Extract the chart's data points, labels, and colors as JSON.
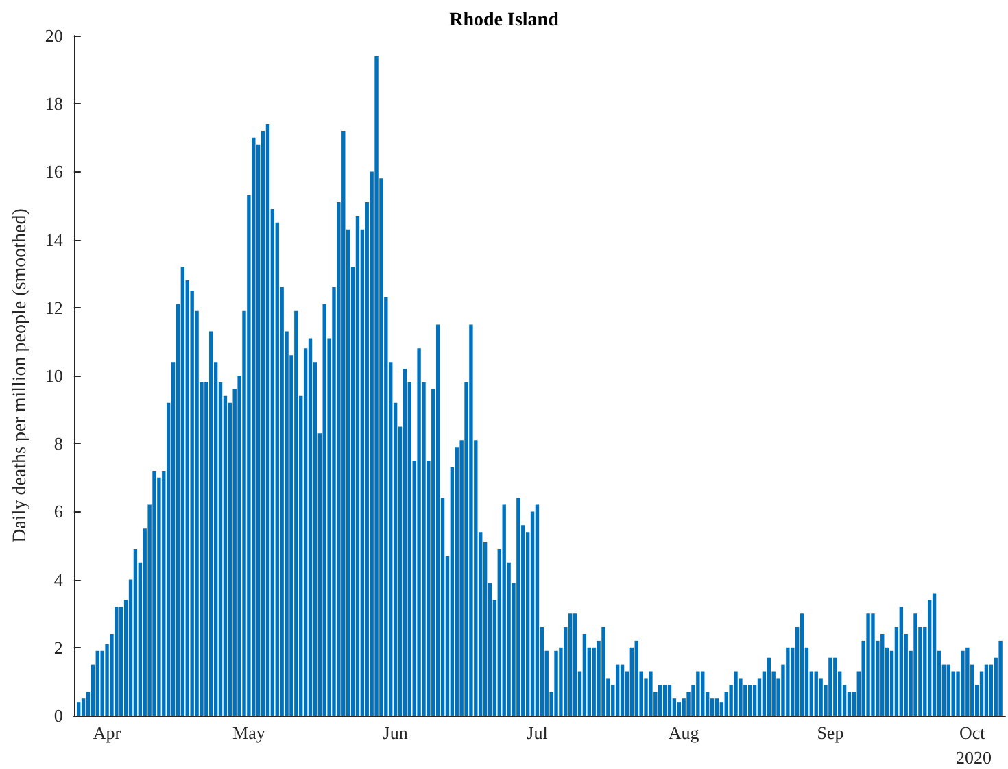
{
  "chart_data": {
    "type": "bar",
    "title": "Rhode Island",
    "ylabel": "Daily deaths per million people (smoothed)",
    "color": "#0072bd",
    "x": [
      "2020-03-26",
      "2020-03-27",
      "2020-03-28",
      "2020-03-29",
      "2020-03-30",
      "2020-03-31",
      "2020-04-01",
      "2020-04-02",
      "2020-04-03",
      "2020-04-04",
      "2020-04-05",
      "2020-04-06",
      "2020-04-07",
      "2020-04-08",
      "2020-04-09",
      "2020-04-10",
      "2020-04-11",
      "2020-04-12",
      "2020-04-13",
      "2020-04-14",
      "2020-04-15",
      "2020-04-16",
      "2020-04-17",
      "2020-04-18",
      "2020-04-19",
      "2020-04-20",
      "2020-04-21",
      "2020-04-22",
      "2020-04-23",
      "2020-04-24",
      "2020-04-25",
      "2020-04-26",
      "2020-04-27",
      "2020-04-28",
      "2020-04-29",
      "2020-04-30",
      "2020-05-01",
      "2020-05-02",
      "2020-05-03",
      "2020-05-04",
      "2020-05-05",
      "2020-05-06",
      "2020-05-07",
      "2020-05-08",
      "2020-05-09",
      "2020-05-10",
      "2020-05-11",
      "2020-05-12",
      "2020-05-13",
      "2020-05-14",
      "2020-05-15",
      "2020-05-16",
      "2020-05-17",
      "2020-05-18",
      "2020-05-19",
      "2020-05-20",
      "2020-05-21",
      "2020-05-22",
      "2020-05-23",
      "2020-05-24",
      "2020-05-25",
      "2020-05-26",
      "2020-05-27",
      "2020-05-28",
      "2020-05-29",
      "2020-05-30",
      "2020-05-31",
      "2020-06-01",
      "2020-06-02",
      "2020-06-03",
      "2020-06-04",
      "2020-06-05",
      "2020-06-06",
      "2020-06-07",
      "2020-06-08",
      "2020-06-09",
      "2020-06-10",
      "2020-06-11",
      "2020-06-12",
      "2020-06-13",
      "2020-06-14",
      "2020-06-15",
      "2020-06-16",
      "2020-06-17",
      "2020-06-18",
      "2020-06-19",
      "2020-06-20",
      "2020-06-21",
      "2020-06-22",
      "2020-06-23",
      "2020-06-24",
      "2020-06-25",
      "2020-06-26",
      "2020-06-27",
      "2020-06-28",
      "2020-06-29",
      "2020-06-30",
      "2020-07-01",
      "2020-07-02",
      "2020-07-03",
      "2020-07-04",
      "2020-07-05",
      "2020-07-06",
      "2020-07-07",
      "2020-07-08",
      "2020-07-09",
      "2020-07-10",
      "2020-07-11",
      "2020-07-12",
      "2020-07-13",
      "2020-07-14",
      "2020-07-15",
      "2020-07-16",
      "2020-07-17",
      "2020-07-18",
      "2020-07-19",
      "2020-07-20",
      "2020-07-21",
      "2020-07-22",
      "2020-07-23",
      "2020-07-24",
      "2020-07-25",
      "2020-07-26",
      "2020-07-27",
      "2020-07-28",
      "2020-07-29",
      "2020-07-30",
      "2020-07-31",
      "2020-08-01",
      "2020-08-02",
      "2020-08-03",
      "2020-08-04",
      "2020-08-05",
      "2020-08-06",
      "2020-08-07",
      "2020-08-08",
      "2020-08-09",
      "2020-08-10",
      "2020-08-11",
      "2020-08-12",
      "2020-08-13",
      "2020-08-14",
      "2020-08-15",
      "2020-08-16",
      "2020-08-17",
      "2020-08-18",
      "2020-08-19",
      "2020-08-20",
      "2020-08-21",
      "2020-08-22",
      "2020-08-23",
      "2020-08-24",
      "2020-08-25",
      "2020-08-26",
      "2020-08-27",
      "2020-08-28",
      "2020-08-29",
      "2020-08-30",
      "2020-08-31",
      "2020-09-01",
      "2020-09-02",
      "2020-09-03",
      "2020-09-04",
      "2020-09-05",
      "2020-09-06",
      "2020-09-07",
      "2020-09-08",
      "2020-09-09",
      "2020-09-10",
      "2020-09-11",
      "2020-09-12",
      "2020-09-13",
      "2020-09-14",
      "2020-09-15",
      "2020-09-16",
      "2020-09-17",
      "2020-09-18",
      "2020-09-19",
      "2020-09-20",
      "2020-09-21",
      "2020-09-22",
      "2020-09-23",
      "2020-09-24",
      "2020-09-25",
      "2020-09-26",
      "2020-09-27",
      "2020-09-28",
      "2020-09-29",
      "2020-09-30",
      "2020-10-01",
      "2020-10-02",
      "2020-10-03",
      "2020-10-04",
      "2020-10-05",
      "2020-10-06",
      "2020-10-07"
    ],
    "values": [
      0.4,
      0.5,
      0.7,
      1.5,
      1.9,
      1.9,
      2.1,
      2.4,
      3.2,
      3.2,
      3.4,
      4.0,
      4.9,
      4.5,
      5.5,
      6.2,
      7.2,
      7.0,
      7.2,
      9.2,
      10.4,
      12.1,
      13.2,
      12.8,
      12.5,
      11.9,
      9.8,
      9.8,
      11.3,
      10.4,
      9.8,
      9.4,
      9.2,
      9.6,
      10.0,
      11.9,
      15.3,
      17.0,
      16.8,
      17.2,
      17.4,
      14.9,
      14.5,
      12.6,
      11.3,
      10.6,
      11.9,
      9.4,
      10.8,
      11.1,
      10.4,
      8.3,
      12.1,
      11.1,
      12.6,
      15.1,
      17.2,
      14.3,
      13.2,
      14.7,
      14.3,
      15.1,
      16.0,
      19.4,
      15.8,
      12.3,
      10.4,
      9.2,
      8.5,
      10.2,
      9.8,
      7.5,
      10.8,
      9.8,
      7.5,
      9.6,
      11.5,
      6.4,
      4.7,
      7.3,
      7.9,
      8.1,
      9.8,
      11.5,
      8.1,
      5.4,
      5.1,
      3.9,
      3.4,
      4.9,
      6.2,
      4.5,
      3.9,
      6.4,
      5.6,
      5.4,
      6.0,
      6.2,
      2.6,
      1.9,
      0.7,
      1.9,
      2.0,
      2.6,
      3.0,
      3.0,
      1.3,
      2.4,
      2.0,
      2.0,
      2.2,
      2.6,
      1.1,
      0.9,
      1.5,
      1.5,
      1.3,
      2.0,
      2.2,
      1.3,
      1.1,
      1.3,
      0.7,
      0.9,
      0.9,
      0.9,
      0.5,
      0.4,
      0.5,
      0.7,
      0.9,
      1.3,
      1.3,
      0.7,
      0.5,
      0.5,
      0.4,
      0.7,
      0.9,
      1.3,
      1.1,
      0.9,
      0.9,
      0.9,
      1.1,
      1.3,
      1.7,
      1.3,
      1.1,
      1.5,
      2.0,
      2.0,
      2.6,
      3.0,
      2.0,
      1.3,
      1.3,
      1.1,
      0.9,
      1.7,
      1.7,
      1.3,
      0.9,
      0.7,
      0.7,
      1.3,
      2.2,
      3.0,
      3.0,
      2.2,
      2.4,
      2.0,
      1.9,
      2.6,
      3.2,
      2.4,
      1.9,
      3.0,
      2.6,
      2.6,
      3.4,
      3.6,
      1.9,
      1.5,
      1.5,
      1.3,
      1.3,
      1.9,
      2.0,
      1.5,
      0.9,
      1.3,
      1.5,
      1.5,
      1.7,
      2.2
    ],
    "xlim": [
      "2020-03-25",
      "2020-10-08"
    ],
    "xticks": [
      {
        "value": "2020-04-01",
        "label": "Apr"
      },
      {
        "value": "2020-05-01",
        "label": "May"
      },
      {
        "value": "2020-06-01",
        "label": "Jun"
      },
      {
        "value": "2020-07-01",
        "label": "Jul"
      },
      {
        "value": "2020-08-01",
        "label": "Aug"
      },
      {
        "value": "2020-09-01",
        "label": "Sep"
      },
      {
        "value": "2020-10-01",
        "label": "Oct"
      }
    ],
    "ylim": [
      0,
      20
    ],
    "yticks": [
      0,
      2,
      4,
      6,
      8,
      10,
      12,
      14,
      16,
      18,
      20
    ],
    "annotations": [
      "2020"
    ],
    "grid": false
  }
}
